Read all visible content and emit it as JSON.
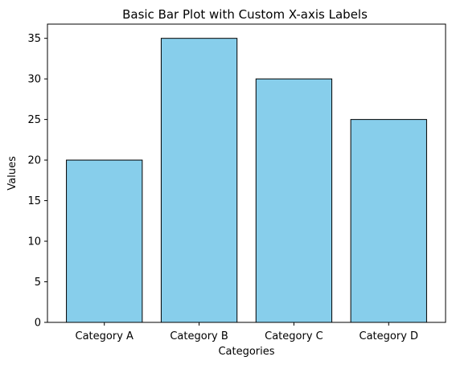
{
  "chart_data": {
    "type": "bar",
    "title": "Basic Bar Plot with Custom X-axis Labels",
    "xlabel": "Categories",
    "ylabel": "Values",
    "categories": [
      "Category A",
      "Category B",
      "Category C",
      "Category D"
    ],
    "values": [
      20,
      35,
      30,
      25
    ],
    "ylim": [
      0,
      36.75
    ],
    "yticks": [
      0,
      5,
      10,
      15,
      20,
      25,
      30,
      35
    ],
    "grid": false,
    "colors": {
      "bar_fill": "#87ceeb",
      "bar_edge": "#000000",
      "axes": "#000000"
    }
  }
}
